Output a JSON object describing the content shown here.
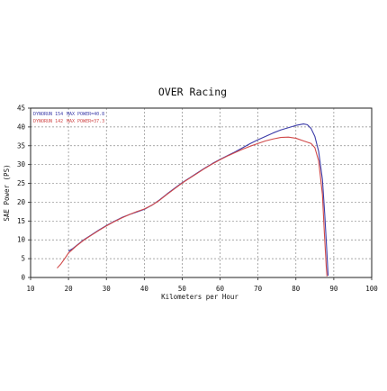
{
  "chart_data": {
    "type": "line",
    "title": "OVER Racing",
    "xlabel": "Kilometers per Hour",
    "ylabel": "SAE Power (PS)",
    "xlim": [
      10,
      100
    ],
    "ylim": [
      0,
      45
    ],
    "x_ticks": [
      10,
      20,
      30,
      40,
      50,
      60,
      70,
      80,
      90,
      100
    ],
    "y_ticks": [
      0,
      5,
      10,
      15,
      20,
      25,
      30,
      35,
      40,
      45
    ],
    "grid": true,
    "legend_position": "top-left",
    "series": [
      {
        "name": "DYNORUN 154",
        "annotation": "MAX POWER=40.8",
        "color": "#3b3ba8",
        "points": [
          [
            20,
            7.0
          ],
          [
            21,
            7.6
          ],
          [
            22,
            8.4
          ],
          [
            24,
            10.0
          ],
          [
            26,
            11.3
          ],
          [
            28,
            12.6
          ],
          [
            30,
            13.8
          ],
          [
            32,
            14.9
          ],
          [
            34,
            15.9
          ],
          [
            36,
            16.7
          ],
          [
            38,
            17.4
          ],
          [
            40,
            18.1
          ],
          [
            42,
            19.2
          ],
          [
            44,
            20.6
          ],
          [
            46,
            22.2
          ],
          [
            48,
            23.7
          ],
          [
            50,
            25.2
          ],
          [
            52,
            26.5
          ],
          [
            54,
            27.8
          ],
          [
            56,
            29.1
          ],
          [
            58,
            30.3
          ],
          [
            60,
            31.4
          ],
          [
            62,
            32.4
          ],
          [
            64,
            33.4
          ],
          [
            66,
            34.5
          ],
          [
            68,
            35.6
          ],
          [
            70,
            36.6
          ],
          [
            72,
            37.5
          ],
          [
            74,
            38.4
          ],
          [
            76,
            39.2
          ],
          [
            78,
            39.8
          ],
          [
            80,
            40.4
          ],
          [
            82,
            40.8
          ],
          [
            83,
            40.6
          ],
          [
            84,
            39.6
          ],
          [
            85,
            37.5
          ],
          [
            86,
            33.5
          ],
          [
            87,
            26.0
          ],
          [
            87.6,
            17.0
          ],
          [
            88.1,
            8.0
          ],
          [
            88.5,
            0.5
          ]
        ]
      },
      {
        "name": "DYNORUN 142",
        "annotation": "MAX POWER=37.3",
        "color": "#d04848",
        "points": [
          [
            17,
            2.5
          ],
          [
            18,
            3.6
          ],
          [
            19,
            5.0
          ],
          [
            20,
            6.5
          ],
          [
            21,
            7.4
          ],
          [
            22,
            8.3
          ],
          [
            24,
            9.9
          ],
          [
            26,
            11.2
          ],
          [
            28,
            12.5
          ],
          [
            30,
            13.7
          ],
          [
            32,
            14.8
          ],
          [
            34,
            15.8
          ],
          [
            36,
            16.7
          ],
          [
            38,
            17.5
          ],
          [
            40,
            18.2
          ],
          [
            42,
            19.2
          ],
          [
            44,
            20.5
          ],
          [
            46,
            22.1
          ],
          [
            48,
            23.6
          ],
          [
            50,
            25.1
          ],
          [
            52,
            26.4
          ],
          [
            54,
            27.7
          ],
          [
            56,
            29.0
          ],
          [
            58,
            30.2
          ],
          [
            60,
            31.3
          ],
          [
            62,
            32.3
          ],
          [
            64,
            33.2
          ],
          [
            66,
            34.1
          ],
          [
            68,
            34.9
          ],
          [
            70,
            35.6
          ],
          [
            72,
            36.3
          ],
          [
            74,
            36.8
          ],
          [
            76,
            37.2
          ],
          [
            78,
            37.3
          ],
          [
            80,
            37.0
          ],
          [
            82,
            36.3
          ],
          [
            84,
            35.6
          ],
          [
            85,
            34.5
          ],
          [
            86,
            31.0
          ],
          [
            87,
            22.0
          ],
          [
            87.5,
            12.0
          ],
          [
            88.0,
            3.0
          ],
          [
            88.2,
            0.3
          ]
        ]
      }
    ]
  }
}
